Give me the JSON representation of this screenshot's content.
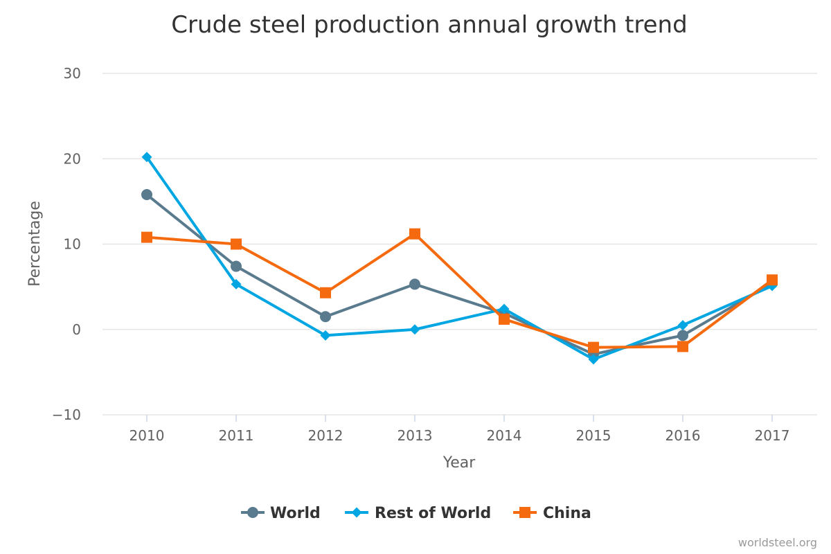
{
  "chart_data": {
    "type": "line",
    "title": "Crude steel production annual growth trend",
    "xlabel": "Year",
    "ylabel": "Percentage",
    "x": [
      "2010",
      "2011",
      "2012",
      "2013",
      "2014",
      "2015",
      "2016",
      "2017"
    ],
    "ylim": [
      -10,
      30
    ],
    "yticks": [
      -10,
      0,
      10,
      20,
      30
    ],
    "ytick_labels": [
      "−10",
      "0",
      "10",
      "20",
      "30"
    ],
    "grid": true,
    "legend_position": "bottom-center",
    "series": [
      {
        "name": "World",
        "color": "#5a7b8e",
        "marker": "circle",
        "values": [
          15.8,
          7.4,
          1.5,
          5.3,
          1.9,
          -2.9,
          -0.7,
          5.4
        ]
      },
      {
        "name": "Rest of World",
        "color": "#00a6e2",
        "marker": "diamond",
        "values": [
          20.2,
          5.3,
          -0.7,
          0.0,
          2.4,
          -3.5,
          0.5,
          5.1
        ]
      },
      {
        "name": "China",
        "color": "#f56a0f",
        "marker": "square",
        "values": [
          10.8,
          10.0,
          4.3,
          11.2,
          1.2,
          -2.1,
          -2.0,
          5.8
        ]
      }
    ],
    "credit": "worldsteel.org"
  }
}
